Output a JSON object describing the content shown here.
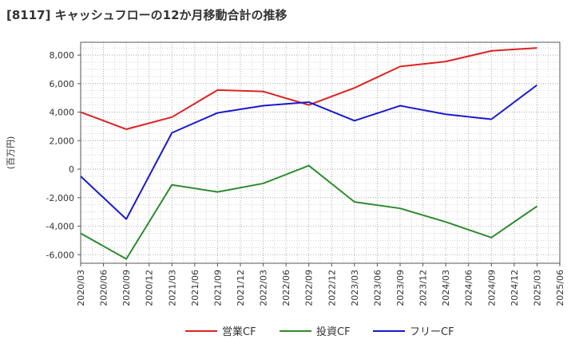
{
  "chart_data": {
    "type": "line",
    "title": "[8117]  キャッシュフローの12か月移動合計の推移",
    "xlabel": "",
    "ylabel": "(百万円)",
    "ylim": [
      -6600,
      8900
    ],
    "yticks": [
      -6000,
      -4000,
      -2000,
      0,
      2000,
      4000,
      6000,
      8000
    ],
    "ytick_labels": [
      "-6,000",
      "-4,000",
      "-2,000",
      "0",
      "2,000",
      "4,000",
      "6,000",
      "8,000"
    ],
    "x_ticks": [
      "2020/03",
      "2020/06",
      "2020/09",
      "2020/12",
      "2021/03",
      "2021/06",
      "2021/09",
      "2021/12",
      "2022/03",
      "2022/06",
      "2022/09",
      "2022/12",
      "2023/03",
      "2023/06",
      "2023/09",
      "2023/12",
      "2024/03",
      "2024/06",
      "2024/09",
      "2024/12",
      "2025/03",
      "2025/06"
    ],
    "x": [
      "2020/03",
      "2020/09",
      "2021/03",
      "2021/09",
      "2022/03",
      "2022/09",
      "2023/03",
      "2023/09",
      "2024/03",
      "2024/09",
      "2025/03"
    ],
    "grid": true,
    "legend_position": "bottom",
    "series": [
      {
        "name": "営業CF",
        "color": "#dd2222",
        "values": [
          4000,
          2800,
          3650,
          5550,
          5450,
          4500,
          5700,
          7200,
          7550,
          8300,
          8500
        ]
      },
      {
        "name": "投資CF",
        "color": "#2e8b2e",
        "values": [
          -4500,
          -6300,
          -1100,
          -1600,
          -1000,
          250,
          -2300,
          -2750,
          -3700,
          -4800,
          -2600
        ]
      },
      {
        "name": "フリーCF",
        "color": "#1a1acc",
        "values": [
          -500,
          -3500,
          2550,
          3950,
          4450,
          4700,
          3400,
          4450,
          3850,
          3500,
          5900
        ]
      }
    ]
  }
}
